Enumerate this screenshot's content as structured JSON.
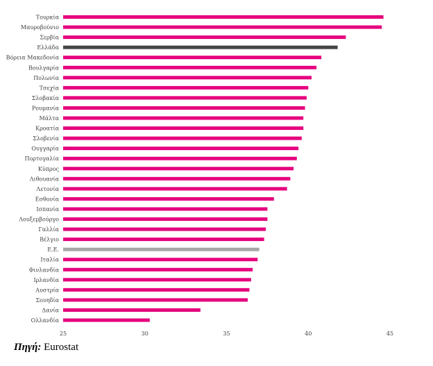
{
  "chart_data": {
    "type": "bar",
    "orientation": "horizontal",
    "categories": [
      "Τουρκία",
      "Μαυροβούνιο",
      "Σερβία",
      "Ελλάδα",
      "Βόρεια Μακεδονία",
      "Βουλγαρία",
      "Πολωνία",
      "Τσεχία",
      "Σλοβακία",
      "Ρουμανία",
      "Μάλτα",
      "Κροατία",
      "Σλοβενία",
      "Ουγγαρία",
      "Πορτογαλία",
      "Κύπρος",
      "Λιθουανία",
      "Λετονία",
      "Εσθονία",
      "Ισπανία",
      "Λουξεμβούργο",
      "Γαλλία",
      "Βέλγιο",
      "Ε.Ε.",
      "Ιταλία",
      "Φινλανδία",
      "Ιρλανδία",
      "Αυστρία",
      "Σουηδία",
      "Δανία",
      "Ολλανδία"
    ],
    "values": [
      44.6,
      44.5,
      42.3,
      41.8,
      40.8,
      40.5,
      40.2,
      40.0,
      39.9,
      39.8,
      39.7,
      39.7,
      39.6,
      39.4,
      39.3,
      39.1,
      38.9,
      38.7,
      37.9,
      37.5,
      37.5,
      37.4,
      37.3,
      37.0,
      36.9,
      36.6,
      36.5,
      36.4,
      36.3,
      33.4,
      30.3
    ],
    "xlim": [
      25,
      45
    ],
    "xticks": [
      "25",
      "30",
      "35",
      "40",
      "45"
    ],
    "colors": {
      "default": "#e6007e",
      "highlight": {
        "Ελλάδα": "#444444",
        "Ε.Ε.": "#a6a6a6"
      }
    },
    "grid": false,
    "legend": "none"
  },
  "source": {
    "label": "Πηγή",
    "text": "Eurostat"
  }
}
